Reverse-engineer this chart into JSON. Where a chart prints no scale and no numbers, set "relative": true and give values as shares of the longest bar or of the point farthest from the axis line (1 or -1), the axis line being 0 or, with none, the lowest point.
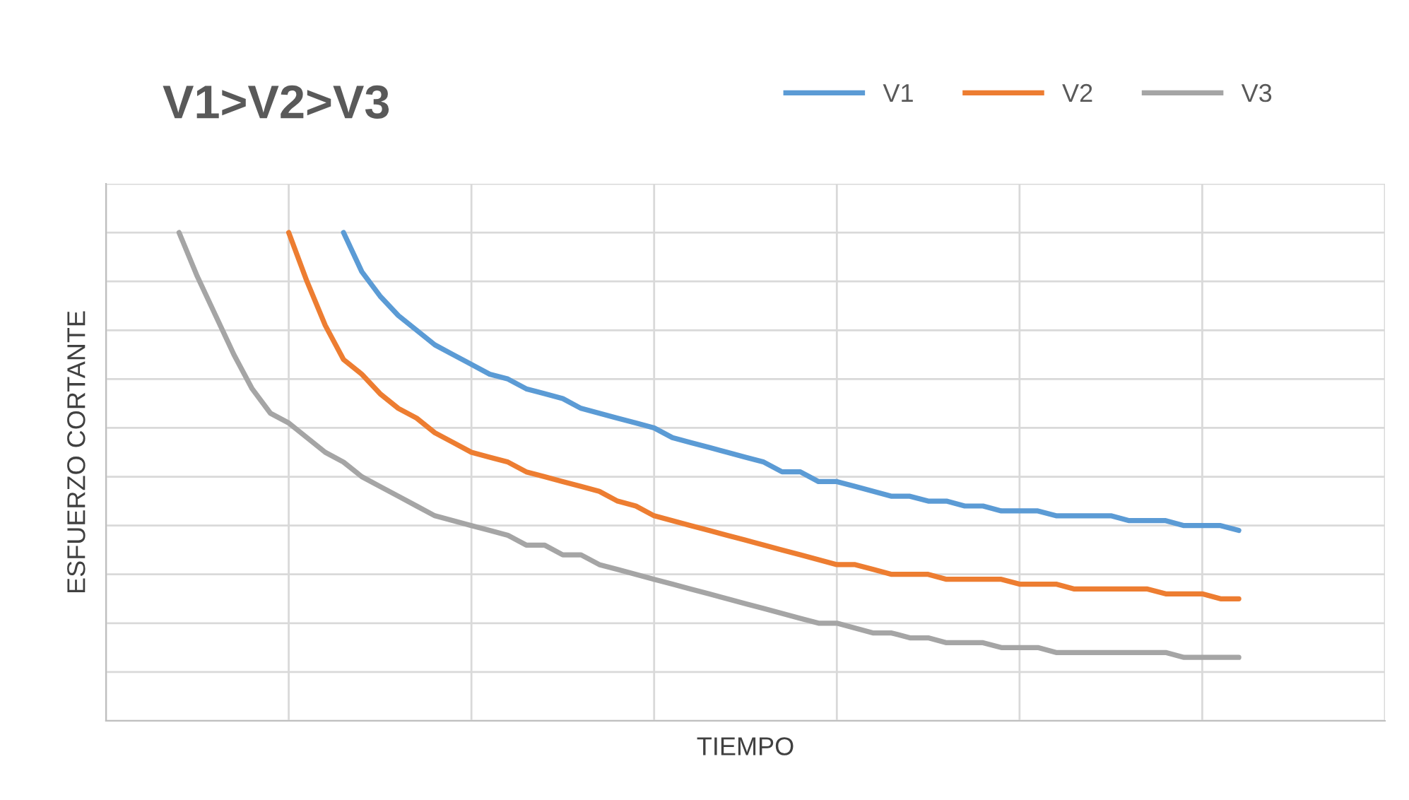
{
  "chart_data": {
    "type": "line",
    "title": "V1>V2>V3",
    "xlabel": "TIEMPO",
    "ylabel": "ESFUERZO CORTANTE",
    "relative": true,
    "grid": true,
    "legend": "top right",
    "marker": "none",
    "line_style": "solid",
    "categories": [
      null,
      null,
      null,
      null,
      null,
      null,
      null,
      null,
      null,
      null,
      null,
      null,
      null,
      null,
      null,
      null,
      null,
      null,
      null,
      null,
      null,
      null,
      null,
      null,
      null,
      null,
      null,
      null,
      null,
      null,
      null,
      null,
      null,
      null,
      null,
      null,
      null,
      null,
      null,
      null,
      null,
      null,
      null,
      null,
      null,
      null,
      null,
      null,
      null,
      null,
      null,
      null,
      null,
      null,
      null,
      null,
      null,
      null,
      null,
      null,
      null,
      null,
      null,
      null,
      null,
      null,
      null,
      null,
      null,
      null,
      null
    ],
    "series": [
      {
        "name": "V1",
        "color": "#5b9bd5",
        "values": [
          null,
          null,
          null,
          null,
          null,
          null,
          null,
          null,
          null,
          null,
          null,
          null,
          null,
          1.0,
          0.92,
          0.87,
          0.83,
          0.8,
          0.77,
          0.75,
          0.73,
          0.71,
          0.7,
          0.68,
          0.67,
          0.66,
          0.64,
          0.63,
          0.62,
          0.61,
          0.6,
          0.58,
          0.57,
          0.56,
          0.55,
          0.54,
          0.53,
          0.51,
          0.51,
          0.49,
          0.49,
          0.48,
          0.47,
          0.46,
          0.46,
          0.45,
          0.45,
          0.44,
          0.44,
          0.43,
          0.43,
          0.43,
          0.42,
          0.42,
          0.42,
          0.42,
          0.41,
          0.41,
          0.41,
          0.4,
          0.4,
          0.4,
          0.39,
          null,
          null,
          null,
          null,
          null,
          null,
          null,
          null
        ]
      },
      {
        "name": "V2",
        "color": "#ed7d31",
        "values": [
          null,
          null,
          null,
          null,
          null,
          null,
          null,
          null,
          null,
          null,
          1.0,
          0.9,
          0.81,
          0.74,
          0.71,
          0.67,
          0.64,
          0.62,
          0.59,
          0.57,
          0.55,
          0.54,
          0.53,
          0.51,
          0.5,
          0.49,
          0.48,
          0.47,
          0.45,
          0.44,
          0.42,
          0.41,
          0.4,
          0.39,
          0.38,
          0.37,
          0.36,
          0.35,
          0.34,
          0.33,
          0.32,
          0.32,
          0.31,
          0.3,
          0.3,
          0.3,
          0.29,
          0.29,
          0.29,
          0.29,
          0.28,
          0.28,
          0.28,
          0.27,
          0.27,
          0.27,
          0.27,
          0.27,
          0.26,
          0.26,
          0.26,
          0.25,
          0.25,
          null,
          null,
          null,
          null,
          null,
          null,
          null,
          null
        ]
      },
      {
        "name": "V3",
        "color": "#a5a5a5",
        "values": [
          null,
          null,
          null,
          null,
          1.0,
          0.91,
          0.83,
          0.75,
          0.68,
          0.63,
          0.61,
          0.58,
          0.55,
          0.53,
          0.5,
          0.48,
          0.46,
          0.44,
          0.42,
          0.41,
          0.4,
          0.39,
          0.38,
          0.36,
          0.36,
          0.34,
          0.34,
          0.32,
          0.31,
          0.3,
          0.29,
          0.28,
          0.27,
          0.26,
          0.25,
          0.24,
          0.23,
          0.22,
          0.21,
          0.2,
          0.2,
          0.19,
          0.18,
          0.18,
          0.17,
          0.17,
          0.16,
          0.16,
          0.16,
          0.15,
          0.15,
          0.15,
          0.14,
          0.14,
          0.14,
          0.14,
          0.14,
          0.14,
          0.14,
          0.13,
          0.13,
          0.13,
          0.13,
          null,
          null,
          null,
          null,
          null,
          null,
          null,
          null
        ]
      }
    ]
  }
}
